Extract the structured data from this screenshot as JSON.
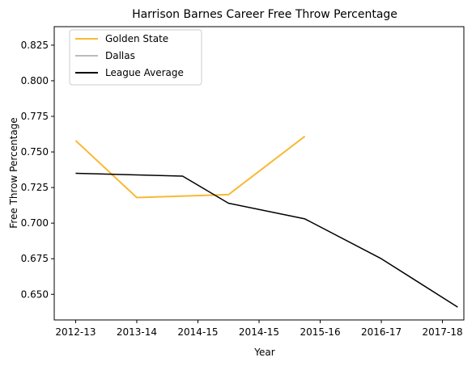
{
  "chart_data": {
    "type": "line",
    "title": "Harrison Barnes Career Free Throw Percentage",
    "xlabel": "Year",
    "ylabel": "Free Throw Percentage",
    "x_tick_labels": [
      "2012-13",
      "2013-14",
      "2014-15",
      "2014-15",
      "2015-16",
      "2016-17",
      "2017-18"
    ],
    "xlim": [
      -0.35,
      6.35
    ],
    "ylim": [
      0.632,
      0.838
    ],
    "y_ticks": [
      0.65,
      0.675,
      0.7,
      0.725,
      0.75,
      0.775,
      0.8,
      0.825
    ],
    "y_tick_labels": [
      "0.650",
      "0.675",
      "0.700",
      "0.725",
      "0.750",
      "0.775",
      "0.800",
      "0.825"
    ],
    "grid": false,
    "legend_position": "top-left",
    "series": [
      {
        "name": "Golden State",
        "color": "#f9b935",
        "points": [
          [
            0,
            0.758
          ],
          [
            1,
            0.718
          ],
          [
            2.5,
            0.72
          ],
          [
            3.75,
            0.761
          ]
        ]
      },
      {
        "name": "Dallas",
        "color": "#bbbbbb",
        "points": []
      },
      {
        "name": "League Average",
        "color": "#000000",
        "points": [
          [
            0,
            0.735
          ],
          [
            1.75,
            0.733
          ],
          [
            2.5,
            0.714
          ],
          [
            3.75,
            0.703
          ],
          [
            5,
            0.675
          ],
          [
            6.25,
            0.641
          ]
        ]
      }
    ]
  }
}
